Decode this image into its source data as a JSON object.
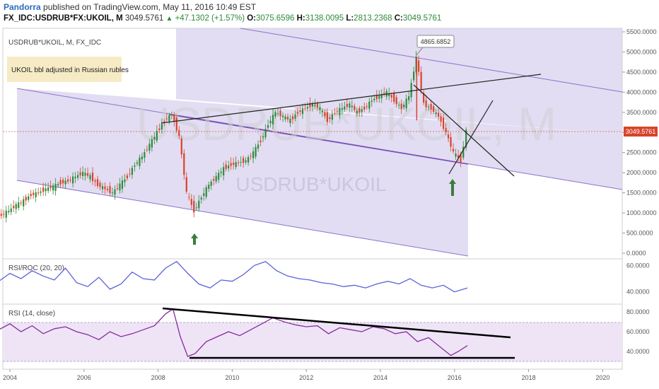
{
  "header": {
    "author": "Pandorra",
    "published": "published on TradingView.com, May 11, 2016 10:49 EST",
    "symbol": "FX_IDC:USDRUB*FX:UKOIL, M",
    "last": "3049.5761",
    "change": "+47.1302 (+1.57%)",
    "o_label": "O:",
    "o_val": "3075.6596",
    "h_label": "H:",
    "h_val": "3138.0095",
    "l_label": "L:",
    "l_val": "2813.2368",
    "c_label": "C:",
    "c_val": "3049.5761"
  },
  "main_pane": {
    "title": "USDRUB*UKOIL, M, FX_IDC",
    "note": "UKOIL bbl adjusted in Russian rubles",
    "watermark_big": "USDRUB*UKOIL, M",
    "watermark_small": "USDRUB*UKOIL",
    "peak_label": "4865.6852",
    "price_label": "3049.5761",
    "y_ticks": [
      "5500.0000",
      "5000.0000",
      "4500.0000",
      "4000.0000",
      "3500.0000",
      "3000.0000",
      "2500.0000",
      "2000.0000",
      "1500.0000",
      "1000.0000",
      "500.0000",
      "0.0000"
    ]
  },
  "rsi_roc_pane": {
    "title": "RSI/ROC (20, 20)",
    "y_ticks": [
      "60.0000",
      "40.0000"
    ]
  },
  "rsi_pane": {
    "title": "RSI (14, close)",
    "y_ticks": [
      "80.0000",
      "60.0000",
      "40.0000"
    ]
  },
  "x_ticks": [
    "2004",
    "2006",
    "2008",
    "2010",
    "2012",
    "2014",
    "2016",
    "2018",
    "2020"
  ],
  "colors": {
    "up": "#2e8b3a",
    "down": "#d9432b",
    "channel": "#9b8fc4",
    "rsi": "#8a2a9e",
    "rsiroc": "#5a62d8"
  },
  "chart_data": [
    {
      "type": "candlestick",
      "title": "USDRUB*UKOIL, M, FX_IDC",
      "series": [
        {
          "name": "USDRUB*UKOIL",
          "x": [
            2003.4,
            2003.6,
            2003.8,
            2004.0,
            2004.2,
            2004.4,
            2004.6,
            2004.8,
            2005.0,
            2005.2,
            2005.4,
            2005.6,
            2005.8,
            2006.0,
            2006.2,
            2006.4,
            2006.6,
            2006.8,
            2007.0,
            2007.2,
            2007.4,
            2007.6,
            2007.8,
            2008.0,
            2008.2,
            2008.4,
            2008.6,
            2008.8,
            2009.0,
            2009.2,
            2009.4,
            2009.6,
            2009.8,
            2010.0,
            2010.2,
            2010.4,
            2010.6,
            2010.8,
            2011.0,
            2011.2,
            2011.4,
            2011.6,
            2011.8,
            2012.0,
            2012.2,
            2012.4,
            2012.6,
            2012.8,
            2013.0,
            2013.2,
            2013.4,
            2013.6,
            2013.8,
            2014.0,
            2014.2,
            2014.4,
            2014.6,
            2014.8,
            2015.0,
            2015.2,
            2015.4,
            2015.6,
            2015.8,
            2016.0,
            2016.2,
            2016.35
          ],
          "y": [
            850,
            880,
            950,
            1050,
            1200,
            1300,
            1450,
            1500,
            1600,
            1650,
            1750,
            1800,
            1900,
            2000,
            1900,
            1700,
            1600,
            1500,
            1700,
            1900,
            2200,
            2400,
            2700,
            3000,
            3300,
            3450,
            2900,
            1500,
            1050,
            1400,
            1700,
            1900,
            2100,
            2200,
            2250,
            2300,
            2500,
            2800,
            3200,
            3500,
            3400,
            3300,
            3500,
            3600,
            3700,
            3600,
            3300,
            3500,
            3600,
            3700,
            3500,
            3600,
            3800,
            3900,
            4000,
            3800,
            3600,
            3900,
            4865,
            3700,
            3600,
            3400,
            3000,
            2500,
            2300,
            3049
          ]
        }
      ],
      "ylim": [
        0,
        5500
      ],
      "xlim": [
        2003.4,
        2020.6
      ],
      "annotations": [
        "4865.6852",
        "3049.5761"
      ]
    },
    {
      "type": "line",
      "title": "RSI/ROC (20, 20)",
      "series": [
        {
          "name": "RSI/ROC",
          "x": [
            2003.4,
            2003.7,
            2004.0,
            2004.3,
            2004.6,
            2004.9,
            2005.2,
            2005.5,
            2005.8,
            2006.1,
            2006.4,
            2006.7,
            2007.0,
            2007.3,
            2007.6,
            2007.9,
            2008.2,
            2008.5,
            2008.8,
            2009.1,
            2009.4,
            2009.7,
            2010.0,
            2010.3,
            2010.6,
            2010.9,
            2011.2,
            2011.5,
            2011.8,
            2012.1,
            2012.4,
            2012.7,
            2013.0,
            2013.3,
            2013.6,
            2013.9,
            2014.2,
            2014.5,
            2014.8,
            2015.1,
            2015.4,
            2015.7,
            2016.0,
            2016.35
          ],
          "y": [
            43,
            48,
            54,
            50,
            56,
            52,
            49,
            58,
            47,
            44,
            51,
            42,
            46,
            55,
            50,
            49,
            58,
            63,
            54,
            46,
            43,
            49,
            48,
            53,
            60,
            63,
            56,
            52,
            50,
            49,
            47,
            46,
            44,
            45,
            43,
            46,
            48,
            46,
            50,
            45,
            43,
            45,
            40,
            43
          ]
        }
      ],
      "ylim": [
        35,
        65
      ]
    },
    {
      "type": "line",
      "title": "RSI (14, close)",
      "series": [
        {
          "name": "RSI",
          "x": [
            2003.4,
            2003.7,
            2004.0,
            2004.3,
            2004.6,
            2004.9,
            2005.2,
            2005.5,
            2005.8,
            2006.1,
            2006.4,
            2006.7,
            2007.0,
            2007.3,
            2007.6,
            2007.9,
            2008.2,
            2008.4,
            2008.6,
            2008.8,
            2009.0,
            2009.3,
            2009.6,
            2009.9,
            2010.2,
            2010.5,
            2010.8,
            2011.1,
            2011.4,
            2011.7,
            2012.0,
            2012.3,
            2012.6,
            2012.9,
            2013.2,
            2013.5,
            2013.8,
            2014.1,
            2014.4,
            2014.7,
            2015.0,
            2015.3,
            2015.6,
            2015.9,
            2016.1,
            2016.35
          ],
          "y": [
            63,
            62,
            68,
            60,
            66,
            58,
            63,
            65,
            60,
            57,
            52,
            60,
            55,
            58,
            62,
            66,
            78,
            83,
            55,
            35,
            38,
            50,
            55,
            60,
            56,
            62,
            68,
            74,
            70,
            67,
            65,
            66,
            58,
            64,
            62,
            60,
            65,
            63,
            58,
            60,
            50,
            54,
            45,
            36,
            40,
            46
          ]
        }
      ],
      "ylim": [
        30,
        85
      ]
    }
  ]
}
